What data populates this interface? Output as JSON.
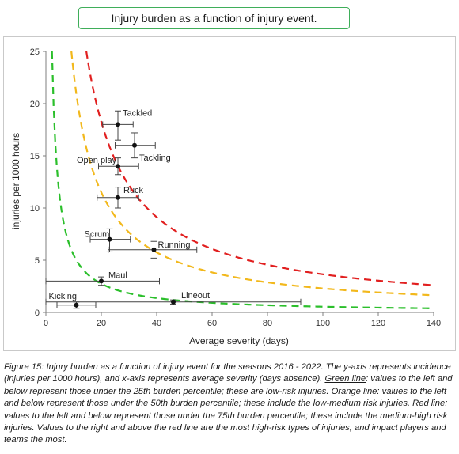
{
  "header": {
    "title": "Injury burden as a function of injury event."
  },
  "chart_data": {
    "type": "scatter",
    "xlabel": "Average severity (days)",
    "ylabel": "injuries per 1000 hours",
    "xlim": [
      0,
      140
    ],
    "ylim": [
      0,
      25
    ],
    "xticks": [
      0,
      20,
      40,
      60,
      80,
      100,
      120,
      140
    ],
    "yticks": [
      0,
      5,
      10,
      15,
      20,
      25
    ],
    "grid": false,
    "points": [
      {
        "label": "Tackled",
        "x": 26,
        "y": 18,
        "xerr": [
          20.5,
          31.5
        ],
        "yerr": [
          16.5,
          19.3
        ]
      },
      {
        "label": "Tackling",
        "x": 32,
        "y": 16,
        "xerr": [
          25,
          39.5
        ],
        "yerr": [
          14.8,
          17.2
        ]
      },
      {
        "label": "Open play",
        "x": 26,
        "y": 14,
        "xerr": [
          19,
          33.5
        ],
        "yerr": [
          13.2,
          14.8
        ]
      },
      {
        "label": "Ruck",
        "x": 26,
        "y": 11,
        "xerr": [
          18.5,
          33.5
        ],
        "yerr": [
          10,
          12
        ]
      },
      {
        "label": "Scrum",
        "x": 23,
        "y": 7,
        "xerr": [
          16,
          30.5
        ],
        "yerr": [
          5.8,
          8
        ]
      },
      {
        "label": "Running",
        "x": 39,
        "y": 6,
        "xerr": [
          22.5,
          54.5
        ],
        "yerr": [
          5.2,
          6.8
        ]
      },
      {
        "label": "Maul",
        "x": 20,
        "y": 3,
        "xerr": [
          0,
          41
        ],
        "yerr": [
          2.6,
          3.4
        ]
      },
      {
        "label": "Kicking",
        "x": 11,
        "y": 0.7,
        "xerr": [
          4,
          18
        ],
        "yerr": [
          0.4,
          1.0
        ]
      },
      {
        "label": "Lineout",
        "x": 46,
        "y": 1,
        "xerr": [
          0,
          92
        ],
        "yerr": [
          0.8,
          1.2
        ]
      }
    ],
    "curves": [
      {
        "color": "#2bbf2b",
        "k": 55
      },
      {
        "color": "#f2b81c",
        "k": 230
      },
      {
        "color": "#e11f1f",
        "k": 365
      }
    ]
  },
  "caption": {
    "part1": "Figure 15: Injury burden as a function of injury event for the seasons 2016 - 2022. The y-axis represents incidence (injuries per 1000 hours), and x-axis represents average severity (days absence). ",
    "green_label": "Green line",
    "part2": ": values to the left and below represent those under the 25th burden percentile; these are low-risk injuries. ",
    "orange_label": "Orange line",
    "part3": ": values to the left and below represent those under the 50th burden percentile; these include the low-medium risk injuries. ",
    "red_label": "Red line",
    "part4": ": values to the left and below represent those under the 75th burden percentile; these include the medium-high risk injuries. Values to the right and above the red line are the most high-risk types of injuries, and impact players and teams the most."
  }
}
